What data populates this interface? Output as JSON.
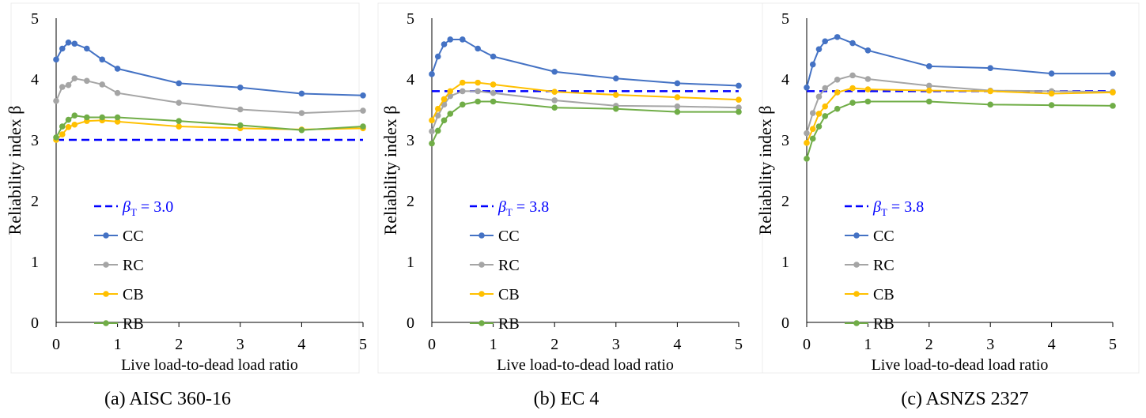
{
  "chart_data": [
    {
      "type": "line",
      "caption": "(a) AISC 360-16",
      "xlabel": "Live load-to-dead load ratio",
      "ylabel": "Reliability index β",
      "xlim": [
        0,
        5
      ],
      "ylim": [
        0,
        5
      ],
      "xticks": [
        "0",
        "1",
        "2",
        "3",
        "4",
        "5"
      ],
      "yticks": [
        "0",
        "1",
        "2",
        "3",
        "4",
        "5"
      ],
      "target": {
        "label_prefix": "β",
        "label_sub": "T",
        "label_suffix": " = 3.0",
        "value": 3.0,
        "color": "#0000FF"
      },
      "x": [
        0,
        0.1,
        0.2,
        0.3,
        0.5,
        0.75,
        1,
        2,
        3,
        4,
        5
      ],
      "series": [
        {
          "name": "CC",
          "color": "#4472C4",
          "values": [
            4.32,
            4.5,
            4.6,
            4.58,
            4.5,
            4.32,
            4.17,
            3.93,
            3.86,
            3.76,
            3.73
          ]
        },
        {
          "name": "RC",
          "color": "#A5A5A5",
          "values": [
            3.64,
            3.87,
            3.9,
            4.01,
            3.97,
            3.91,
            3.77,
            3.61,
            3.5,
            3.44,
            3.48
          ]
        },
        {
          "name": "CB",
          "color": "#FFC000",
          "values": [
            3.0,
            3.09,
            3.21,
            3.25,
            3.31,
            3.32,
            3.3,
            3.22,
            3.19,
            3.17,
            3.19
          ]
        },
        {
          "name": "RB",
          "color": "#70AD47",
          "values": [
            3.04,
            3.22,
            3.33,
            3.4,
            3.37,
            3.37,
            3.37,
            3.31,
            3.24,
            3.16,
            3.22
          ]
        }
      ]
    },
    {
      "type": "line",
      "caption": "(b) EC 4",
      "xlabel": "Live load-to-dead load ratio",
      "ylabel": "Reliability index β",
      "xlim": [
        0,
        5
      ],
      "ylim": [
        0,
        5
      ],
      "xticks": [
        "0",
        "1",
        "2",
        "3",
        "4",
        "5"
      ],
      "yticks": [
        "0",
        "1",
        "2",
        "3",
        "4",
        "5"
      ],
      "target": {
        "label_prefix": "β",
        "label_sub": "T",
        "label_suffix": " = 3.8",
        "value": 3.8,
        "color": "#0000FF"
      },
      "x": [
        0,
        0.1,
        0.2,
        0.3,
        0.5,
        0.75,
        1,
        2,
        3,
        4,
        5
      ],
      "series": [
        {
          "name": "CC",
          "color": "#4472C4",
          "values": [
            4.08,
            4.37,
            4.57,
            4.65,
            4.65,
            4.5,
            4.37,
            4.12,
            4.01,
            3.93,
            3.89
          ]
        },
        {
          "name": "RC",
          "color": "#A5A5A5",
          "values": [
            3.14,
            3.4,
            3.58,
            3.72,
            3.8,
            3.8,
            3.77,
            3.65,
            3.56,
            3.55,
            3.53
          ]
        },
        {
          "name": "CB",
          "color": "#FFC000",
          "values": [
            3.32,
            3.51,
            3.67,
            3.8,
            3.94,
            3.94,
            3.91,
            3.79,
            3.74,
            3.7,
            3.66
          ]
        },
        {
          "name": "RB",
          "color": "#70AD47",
          "values": [
            2.94,
            3.15,
            3.32,
            3.43,
            3.58,
            3.63,
            3.63,
            3.53,
            3.51,
            3.46,
            3.46
          ]
        }
      ]
    },
    {
      "type": "line",
      "caption": "(c) ASNZS 2327",
      "xlabel": "Live load-to-dead load ratio",
      "ylabel": "Reliability index β",
      "xlim": [
        0,
        5
      ],
      "ylim": [
        0,
        5
      ],
      "xticks": [
        "0",
        "1",
        "2",
        "3",
        "4",
        "5"
      ],
      "yticks": [
        "0",
        "1",
        "2",
        "3",
        "4",
        "5"
      ],
      "target": {
        "label_prefix": "β",
        "label_sub": "T",
        "label_suffix": " = 3.8",
        "value": 3.8,
        "color": "#0000FF"
      },
      "x": [
        0,
        0.1,
        0.2,
        0.3,
        0.5,
        0.75,
        1,
        2,
        3,
        4,
        5
      ],
      "series": [
        {
          "name": "CC",
          "color": "#4472C4",
          "values": [
            3.86,
            4.24,
            4.49,
            4.62,
            4.69,
            4.59,
            4.47,
            4.21,
            4.18,
            4.09,
            4.09
          ]
        },
        {
          "name": "RC",
          "color": "#A5A5A5",
          "values": [
            3.11,
            3.44,
            3.71,
            3.85,
            3.99,
            4.06,
            4.0,
            3.89,
            3.81,
            3.8,
            3.79
          ]
        },
        {
          "name": "CB",
          "color": "#FFC000",
          "values": [
            2.95,
            3.18,
            3.43,
            3.55,
            3.78,
            3.85,
            3.83,
            3.81,
            3.8,
            3.76,
            3.78
          ]
        },
        {
          "name": "RB",
          "color": "#70AD47",
          "values": [
            2.69,
            3.02,
            3.22,
            3.39,
            3.51,
            3.61,
            3.63,
            3.63,
            3.58,
            3.57,
            3.56
          ]
        }
      ]
    }
  ]
}
